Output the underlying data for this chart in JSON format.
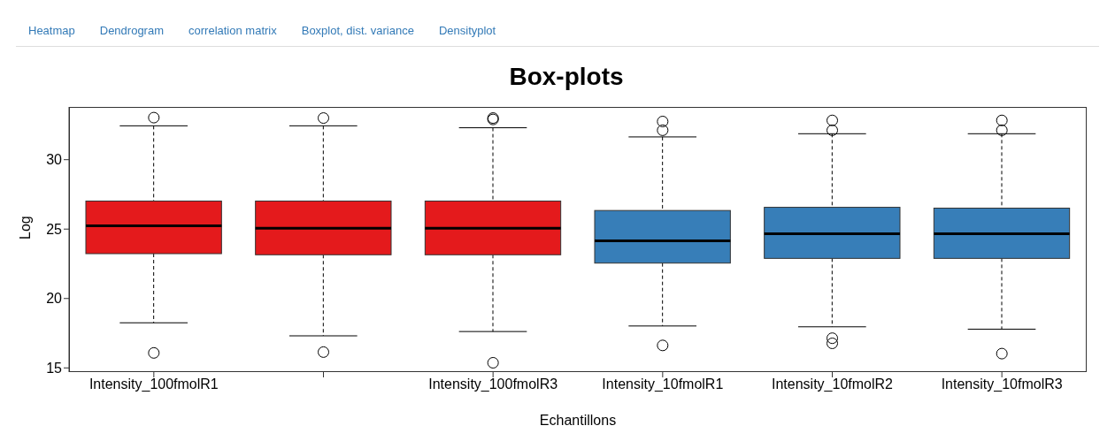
{
  "chart_data": {
    "type": "box",
    "title": "Box-plots",
    "xlabel": "Echantillons",
    "ylabel": "Log",
    "annotations": [
      "Heatmap",
      "Dendrogram",
      "correlation matrix",
      "Boxplot, dist. variance",
      "Densityplot"
    ],
    "categories": [
      "Intensity_100fmolR1",
      null,
      "Intensity_100fmolR3",
      "Intensity_10fmolR1",
      "Intensity_10fmolR2",
      "Intensity_10fmolR3"
    ],
    "colors": [
      "#e41a1c",
      "#e41a1c",
      "#e41a1c",
      "#377eb8",
      "#377eb8",
      "#377eb8"
    ],
    "boxes": [
      {
        "low": 18.25,
        "q1": 23.23,
        "median": 25.23,
        "q3": 27.02,
        "high": 32.44,
        "outliers": [
          33.03,
          16.08
        ]
      },
      {
        "low": 17.31,
        "q1": 23.15,
        "median": 25.06,
        "q3": 27.02,
        "high": 32.44,
        "outliers": [
          33.0,
          16.14
        ]
      },
      {
        "low": 17.62,
        "q1": 23.15,
        "median": 25.06,
        "q3": 27.02,
        "high": 32.3,
        "outliers": [
          33.0,
          32.9,
          15.37
        ]
      },
      {
        "low": 18.02,
        "q1": 22.55,
        "median": 24.15,
        "q3": 26.34,
        "high": 31.64,
        "outliers": [
          32.75,
          32.12,
          16.62
        ]
      },
      {
        "low": 17.96,
        "q1": 22.89,
        "median": 24.66,
        "q3": 26.57,
        "high": 31.87,
        "outliers": [
          32.83,
          32.12,
          17.14,
          16.77
        ]
      },
      {
        "low": 17.79,
        "q1": 22.89,
        "median": 24.66,
        "q3": 26.51,
        "high": 31.87,
        "outliers": [
          32.83,
          32.12,
          16.03
        ]
      }
    ],
    "ylim": [
      14.7,
      33.8
    ],
    "yticks": [
      15,
      20,
      25,
      30
    ],
    "grid": false,
    "legend": false,
    "marker": "circle"
  }
}
